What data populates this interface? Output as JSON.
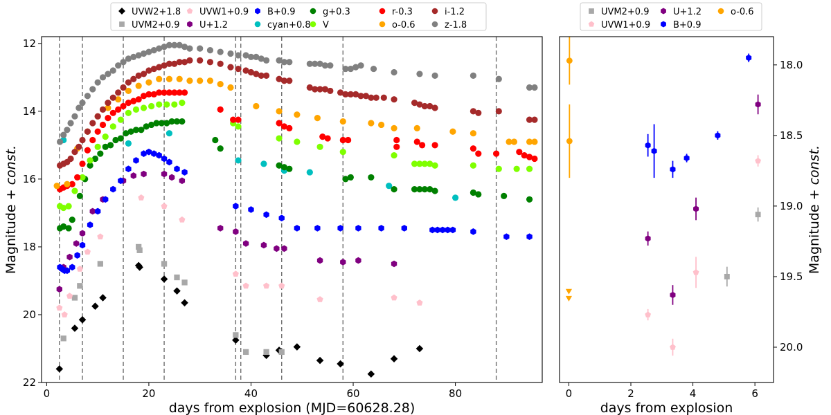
{
  "chart_data": [
    {
      "type": "scatter",
      "xlabel": "days from explosion (MJD=60628.28)",
      "ylabel_main": "Magnitude + ",
      "ylabel_italic": "const.",
      "xlim": [
        -1,
        97
      ],
      "ylim": [
        22,
        11.8
      ],
      "ylim_note": "inverted",
      "xticks": [
        0,
        20,
        40,
        60,
        80
      ],
      "yticks": [
        12,
        14,
        16,
        18,
        20,
        22
      ],
      "vlines": [
        2.5,
        7,
        15,
        23,
        37,
        38,
        46,
        58,
        88
      ],
      "legend": [
        "UVW2+1.8",
        "UVM2+0.9",
        "UVW1+0.9",
        "U+1.2",
        "B+0.9",
        "cyan+0.8",
        "g+0.3",
        "V",
        "r-0.3",
        "o-0.6",
        "i-1.2",
        "z-1.8"
      ],
      "series": [
        {
          "name": "UVW2+1.8",
          "color": "#000000",
          "marker": "diamond",
          "x": [
            2.5,
            5.5,
            7,
            9.5,
            11,
            18,
            18.2,
            23,
            25.5,
            27,
            37,
            43,
            45.5,
            49,
            53.5,
            57.5,
            63.5,
            68,
            73
          ],
          "y": [
            21.6,
            20.4,
            20.15,
            19.75,
            19.5,
            18.55,
            18.6,
            18.95,
            19.3,
            19.65,
            20.75,
            21.2,
            21.05,
            20.95,
            21.35,
            21.45,
            21.75,
            21.3,
            21.0
          ]
        },
        {
          "name": "UVM2+0.9",
          "color": "#a8a8a8",
          "marker": "square",
          "x": [
            3.3,
            5.5,
            6.5,
            10.5,
            18,
            18.2,
            23,
            25.5,
            27,
            37,
            39,
            43,
            46
          ],
          "y": [
            20.7,
            19.5,
            19.15,
            18.5,
            18.0,
            18.1,
            18.5,
            18.9,
            19.05,
            20.6,
            21.1,
            21.1,
            21.1
          ]
        },
        {
          "name": "UVW1+0.9",
          "color": "#ffc0cb",
          "marker": "pentagon",
          "x": [
            2.5,
            3.5,
            4.5,
            6.5,
            8,
            10.5,
            18.5,
            23,
            26.5,
            37,
            39,
            43,
            46,
            53.5,
            68,
            73
          ],
          "y": [
            19.8,
            20.0,
            19.45,
            18.65,
            18.15,
            17.7,
            16.55,
            16.8,
            17.2,
            18.8,
            19.15,
            19.15,
            19.15,
            19.55,
            19.5,
            19.65
          ]
        },
        {
          "name": "U+1.2",
          "color": "#800080",
          "marker": "hexagon",
          "x": [
            2.5,
            3.3,
            4.5,
            5.8,
            7,
            9,
            11,
            15,
            17,
            19,
            23,
            24.5,
            26.5,
            34,
            37,
            39,
            42.5,
            45,
            46.5,
            53.5,
            58,
            61,
            68
          ],
          "y": [
            19.25,
            18.6,
            18.3,
            17.9,
            17.6,
            16.95,
            16.6,
            16.05,
            15.9,
            15.85,
            15.85,
            15.95,
            16.05,
            17.45,
            17.55,
            17.9,
            17.95,
            18.05,
            18.05,
            18.4,
            18.45,
            18.4,
            18.5
          ]
        },
        {
          "name": "B+0.9",
          "color": "#0000ff",
          "marker": "hexagon",
          "x": [
            2.6,
            3,
            3.5,
            4,
            5,
            6,
            7,
            8.5,
            10,
            11.5,
            13,
            14.5,
            16,
            17.5,
            19,
            20,
            21,
            22,
            23,
            24,
            25.5,
            27,
            37,
            40,
            43,
            46,
            49,
            53,
            57.5,
            61,
            65.5,
            70,
            75.5,
            76.5,
            77.5,
            78.5,
            79.5,
            83.5,
            90,
            94.5
          ],
          "y": [
            18.6,
            18.65,
            18.7,
            18.7,
            18.6,
            18.25,
            17.95,
            17.35,
            16.95,
            16.6,
            16.3,
            16.05,
            15.7,
            15.45,
            15.25,
            15.2,
            15.25,
            15.3,
            15.4,
            15.5,
            15.7,
            15.8,
            16.8,
            16.9,
            17.05,
            17.15,
            17.45,
            17.45,
            17.45,
            17.45,
            17.45,
            17.45,
            17.5,
            17.5,
            17.5,
            17.5,
            17.5,
            17.55,
            17.7,
            17.7
          ]
        },
        {
          "name": "cyan+0.8",
          "color": "#00bfbf",
          "marker": "circle",
          "x": [
            3.3,
            16,
            24,
            37.5,
            42.5,
            46.5,
            51.5,
            67,
            80
          ],
          "y": [
            14.85,
            14.95,
            14.65,
            15.45,
            15.55,
            15.75,
            15.8,
            16.2,
            16.55
          ]
        },
        {
          "name": "g+0.3",
          "color": "#008000",
          "marker": "circle",
          "x": [
            2.6,
            3.3,
            4.3,
            5,
            6.5,
            7.5,
            8.5,
            9.5,
            10.5,
            11.5,
            12.5,
            13.5,
            14.5,
            15.5,
            16.5,
            17.5,
            18.5,
            19.5,
            20.5,
            21.5,
            22.5,
            23.5,
            24.5,
            25.5,
            26.5,
            33,
            34,
            45.5,
            46.5,
            47.5,
            58.5,
            59.5,
            63.5,
            68,
            72,
            73,
            74,
            75,
            76,
            83.5,
            84.5,
            89.5,
            94.5
          ],
          "y": [
            17.45,
            17.4,
            17.45,
            17.2,
            16.5,
            16.0,
            15.6,
            15.4,
            15.25,
            15.05,
            15.0,
            14.85,
            14.8,
            14.65,
            14.6,
            14.55,
            14.55,
            14.45,
            14.4,
            14.35,
            14.35,
            14.35,
            14.3,
            14.3,
            14.3,
            14.85,
            15.1,
            15.6,
            15.65,
            15.7,
            16.0,
            15.95,
            15.95,
            16.3,
            16.3,
            16.3,
            16.3,
            16.3,
            16.35,
            16.4,
            16.45,
            16.5,
            16.6
          ]
        },
        {
          "name": "V",
          "color": "#7fff00",
          "marker": "circle",
          "x": [
            2.6,
            3.3,
            4.3,
            5.5,
            7,
            8.5,
            10,
            11.5,
            13,
            14.5,
            16,
            17.5,
            19,
            20.5,
            22,
            23.5,
            25,
            26.5,
            36.5,
            37.5,
            45.5,
            49,
            53.5,
            58,
            68,
            72,
            73,
            74,
            75,
            76,
            83.5,
            88.5,
            92,
            94.5
          ],
          "y": [
            16.8,
            16.85,
            16.8,
            16.35,
            15.95,
            15.45,
            15.05,
            14.75,
            14.45,
            14.25,
            14.05,
            13.95,
            13.9,
            13.85,
            13.8,
            13.8,
            13.8,
            13.75,
            14.35,
            14.45,
            14.8,
            14.9,
            15.05,
            15.2,
            15.3,
            15.55,
            15.55,
            15.55,
            15.55,
            15.6,
            15.6,
            15.7,
            15.7,
            15.7
          ]
        },
        {
          "name": "r-0.3",
          "color": "#ff0000",
          "marker": "circle",
          "x": [
            2.6,
            3.3,
            4,
            5,
            6,
            7,
            8,
            9,
            10,
            11,
            12,
            13,
            14,
            15,
            16,
            17,
            18,
            19,
            20,
            21,
            22,
            23,
            24,
            25,
            26,
            27,
            34,
            36.5,
            37.5,
            45.5,
            46.5,
            47.5,
            54,
            55,
            58,
            59,
            68.5,
            68.5,
            72.5,
            73.5,
            76,
            83.5,
            84.5,
            88,
            92.5,
            93.5,
            94.5,
            95.5
          ],
          "y": [
            16.3,
            16.25,
            16.2,
            16.15,
            15.95,
            15.55,
            15.15,
            14.85,
            14.6,
            14.4,
            14.2,
            14.05,
            13.95,
            13.85,
            13.75,
            13.7,
            13.65,
            13.55,
            13.5,
            13.5,
            13.45,
            13.45,
            13.45,
            13.45,
            13.45,
            13.45,
            13.95,
            14.25,
            14.25,
            14.35,
            14.45,
            14.5,
            14.75,
            14.8,
            14.85,
            14.85,
            14.85,
            15.05,
            14.9,
            15.0,
            15.0,
            15.1,
            15.25,
            15.25,
            15.2,
            15.3,
            15.35,
            15.4
          ]
        },
        {
          "name": "o-0.6",
          "color": "#ffa500",
          "marker": "circle",
          "x": [
            2,
            4,
            6,
            8,
            10,
            12,
            14,
            16,
            18,
            20,
            22,
            24,
            26,
            28,
            30,
            32,
            34,
            36,
            41,
            45.5,
            49,
            53,
            58,
            63.5,
            65.5,
            68,
            72.5,
            79.5,
            83.5,
            90.5,
            91.5,
            94.5,
            95.5
          ],
          "y": [
            16.2,
            16.15,
            15.1,
            14.6,
            14.15,
            13.9,
            13.65,
            13.4,
            13.25,
            13.15,
            13.05,
            13.05,
            13.05,
            13.1,
            13.1,
            13.1,
            13.2,
            13.3,
            13.85,
            14.0,
            14.1,
            14.2,
            14.3,
            14.35,
            14.4,
            14.5,
            14.5,
            14.6,
            14.65,
            14.9,
            14.9,
            14.9,
            14.9
          ]
        },
        {
          "name": "i-1.2",
          "color": "#a52a2a",
          "marker": "circle",
          "x": [
            2.6,
            3.3,
            4,
            4.7,
            5.5,
            6.3,
            7,
            8,
            9,
            10,
            11,
            12,
            13,
            14,
            15,
            16,
            17,
            18,
            19,
            20,
            21,
            22,
            23,
            24,
            25,
            26,
            27,
            28,
            30,
            32,
            34,
            36,
            37.5,
            39,
            40,
            41,
            42,
            43,
            45.5,
            46.5,
            47.5,
            51.5,
            52.5,
            53.5,
            54.5,
            55.5,
            57.5,
            58.5,
            59.5,
            60.5,
            61.5,
            62.5,
            63.5,
            64.5,
            66,
            68,
            72,
            73,
            74,
            75,
            76,
            83.5,
            84.5,
            88.5,
            94.5,
            95.5
          ],
          "y": [
            15.6,
            15.55,
            15.5,
            15.4,
            15.2,
            15.05,
            14.85,
            14.6,
            14.35,
            14.15,
            13.95,
            13.75,
            13.6,
            13.45,
            13.3,
            13.15,
            13.05,
            12.95,
            12.9,
            12.8,
            12.75,
            12.7,
            12.65,
            12.6,
            12.6,
            12.55,
            12.55,
            12.5,
            12.5,
            12.55,
            12.6,
            12.7,
            12.75,
            12.8,
            12.85,
            12.9,
            12.95,
            12.95,
            13.05,
            13.1,
            13.1,
            13.3,
            13.35,
            13.35,
            13.35,
            13.4,
            13.45,
            13.5,
            13.5,
            13.5,
            13.55,
            13.55,
            13.6,
            13.6,
            13.6,
            13.65,
            13.75,
            13.8,
            13.85,
            13.85,
            13.9,
            14.0,
            14.05,
            14.0,
            14.25,
            14.25
          ]
        },
        {
          "name": "z-1.8",
          "color": "#808080",
          "marker": "circle",
          "x": [
            2.6,
            3.3,
            4,
            4.7,
            5.5,
            6.3,
            7,
            8,
            9,
            10,
            11,
            12,
            13,
            14,
            15,
            16,
            17,
            18,
            19,
            20,
            21,
            22,
            23,
            24,
            25,
            26,
            27,
            28,
            30,
            32,
            34,
            36,
            37.5,
            39,
            40,
            41,
            42,
            43,
            45.5,
            46.5,
            47.5,
            51.5,
            52.5,
            53.5,
            54.5,
            55.5,
            58.5,
            59.5,
            60.5,
            61.5,
            64,
            68,
            73,
            76,
            83.5,
            88.5,
            94.5,
            95.5
          ],
          "y": [
            14.9,
            14.7,
            14.55,
            14.35,
            14.15,
            13.9,
            13.75,
            13.55,
            13.35,
            13.15,
            13.0,
            12.9,
            12.8,
            12.65,
            12.55,
            12.45,
            12.4,
            12.35,
            12.3,
            12.25,
            12.2,
            12.15,
            12.1,
            12.05,
            12.05,
            12.05,
            12.1,
            12.15,
            12.15,
            12.2,
            12.25,
            12.3,
            12.35,
            12.35,
            12.4,
            12.4,
            12.45,
            12.5,
            12.5,
            12.55,
            12.55,
            12.6,
            12.6,
            12.6,
            12.65,
            12.65,
            12.75,
            12.75,
            12.7,
            12.65,
            12.75,
            12.85,
            12.9,
            12.95,
            12.95,
            13.05,
            13.3,
            13.3
          ]
        }
      ]
    },
    {
      "type": "scatter",
      "xlabel": "days from explosion",
      "ylabel_main": "Magnitude + ",
      "ylabel_italic": "const.",
      "xlim": [
        -0.3,
        6.6
      ],
      "ylim": [
        20.25,
        17.8
      ],
      "ylim_note": "inverted",
      "xticks": [
        0,
        2,
        4,
        6
      ],
      "yticks": [
        18.0,
        18.5,
        19.0,
        19.5,
        20.0
      ],
      "legend": [
        "UVM2+0.9",
        "UVW1+0.9",
        "U+1.2",
        "B+0.9",
        "o-0.6"
      ],
      "series": [
        {
          "name": "UVM2+0.9",
          "color": "#a8a8a8",
          "marker": "square",
          "x": [
            5.1,
            6.1
          ],
          "y": [
            19.5,
            19.06
          ],
          "err": [
            0.07,
            0.05
          ]
        },
        {
          "name": "UVW1+0.9",
          "color": "#ffc0cb",
          "marker": "pentagon",
          "x": [
            2.55,
            3.35,
            4.1,
            6.1
          ],
          "y": [
            19.77,
            20.0,
            19.47,
            18.68
          ],
          "err": [
            0.04,
            0.06,
            0.11,
            0.04
          ]
        },
        {
          "name": "U+1.2",
          "color": "#800080",
          "marker": "hexagon",
          "x": [
            2.55,
            3.35,
            4.1,
            6.1
          ],
          "y": [
            19.23,
            19.63,
            19.02,
            18.28
          ],
          "err": [
            0.05,
            0.07,
            0.08,
            0.07
          ]
        },
        {
          "name": "B+0.9",
          "color": "#0000ff",
          "marker": "hexagon",
          "x": [
            2.55,
            2.75,
            3.35,
            3.8,
            4.8,
            5.8
          ],
          "y": [
            18.57,
            18.61,
            18.74,
            18.66,
            18.5,
            17.95
          ],
          "err": [
            0.08,
            0.19,
            0.06,
            0.03,
            0.03,
            0.03
          ]
        },
        {
          "name": "o-0.6",
          "color": "#ffa500",
          "marker": "circle",
          "x": [
            0.02,
            0.02
          ],
          "y": [
            17.97,
            18.54
          ],
          "err": [
            0.17,
            0.26
          ]
        },
        {
          "name": "o-0.6 upper limits",
          "color": "#ffa500",
          "marker": "triangle-down",
          "x": [
            0.0,
            0.0
          ],
          "y": [
            19.6,
            19.65
          ],
          "err": [
            0,
            0
          ]
        }
      ]
    }
  ]
}
